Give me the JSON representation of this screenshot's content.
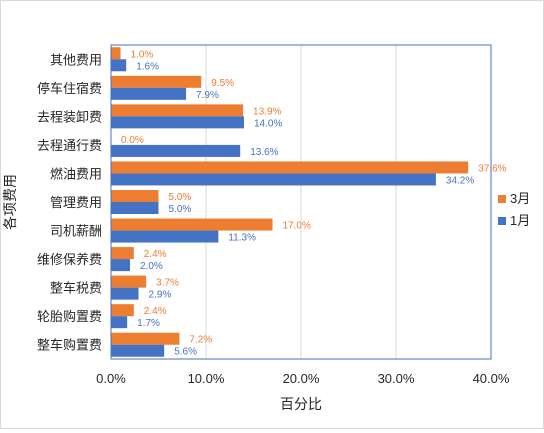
{
  "chart_data": {
    "type": "bar",
    "orientation": "horizontal",
    "categories": [
      "其他费用",
      "停车住宿费",
      "去程装卸费",
      "去程通行费",
      "燃油费用",
      "管理费用",
      "司机薪酬",
      "维修保养费",
      "整车税费",
      "轮胎购置费",
      "整车购置费"
    ],
    "series": [
      {
        "name": "3月",
        "color": "#ED7D31",
        "values": [
          1.0,
          9.5,
          13.9,
          0.0,
          37.6,
          5.0,
          17.0,
          2.4,
          3.7,
          2.4,
          7.2
        ],
        "labels": [
          "1.0%",
          "9.5%",
          "13.9%",
          "0.0%",
          "37.6%",
          "5.0%",
          "17.0%",
          "2.4%",
          "3.7%",
          "2.4%",
          "7.2%"
        ]
      },
      {
        "name": "1月",
        "color": "#4472C4",
        "values": [
          1.6,
          7.9,
          14.0,
          13.6,
          34.2,
          5.0,
          11.3,
          2.0,
          2.9,
          1.7,
          5.6
        ],
        "labels": [
          "1.6%",
          "7.9%",
          "14.0%",
          "13.6%",
          "34.2%",
          "5.0%",
          "11.3%",
          "2.0%",
          "2.9%",
          "1.7%",
          "5.6%"
        ]
      }
    ],
    "xlim": [
      0,
      40
    ],
    "xticks": [
      "0.0%",
      "10.0%",
      "20.0%",
      "30.0%",
      "40.0%"
    ],
    "xlabel": "百分比",
    "ylabel": "各项费用",
    "legend": {
      "position": "right",
      "items": [
        "3月",
        "1月"
      ]
    },
    "grid": true,
    "colors": {
      "plot_border": "#4472C4",
      "gridline": "#d9d9d9"
    }
  }
}
